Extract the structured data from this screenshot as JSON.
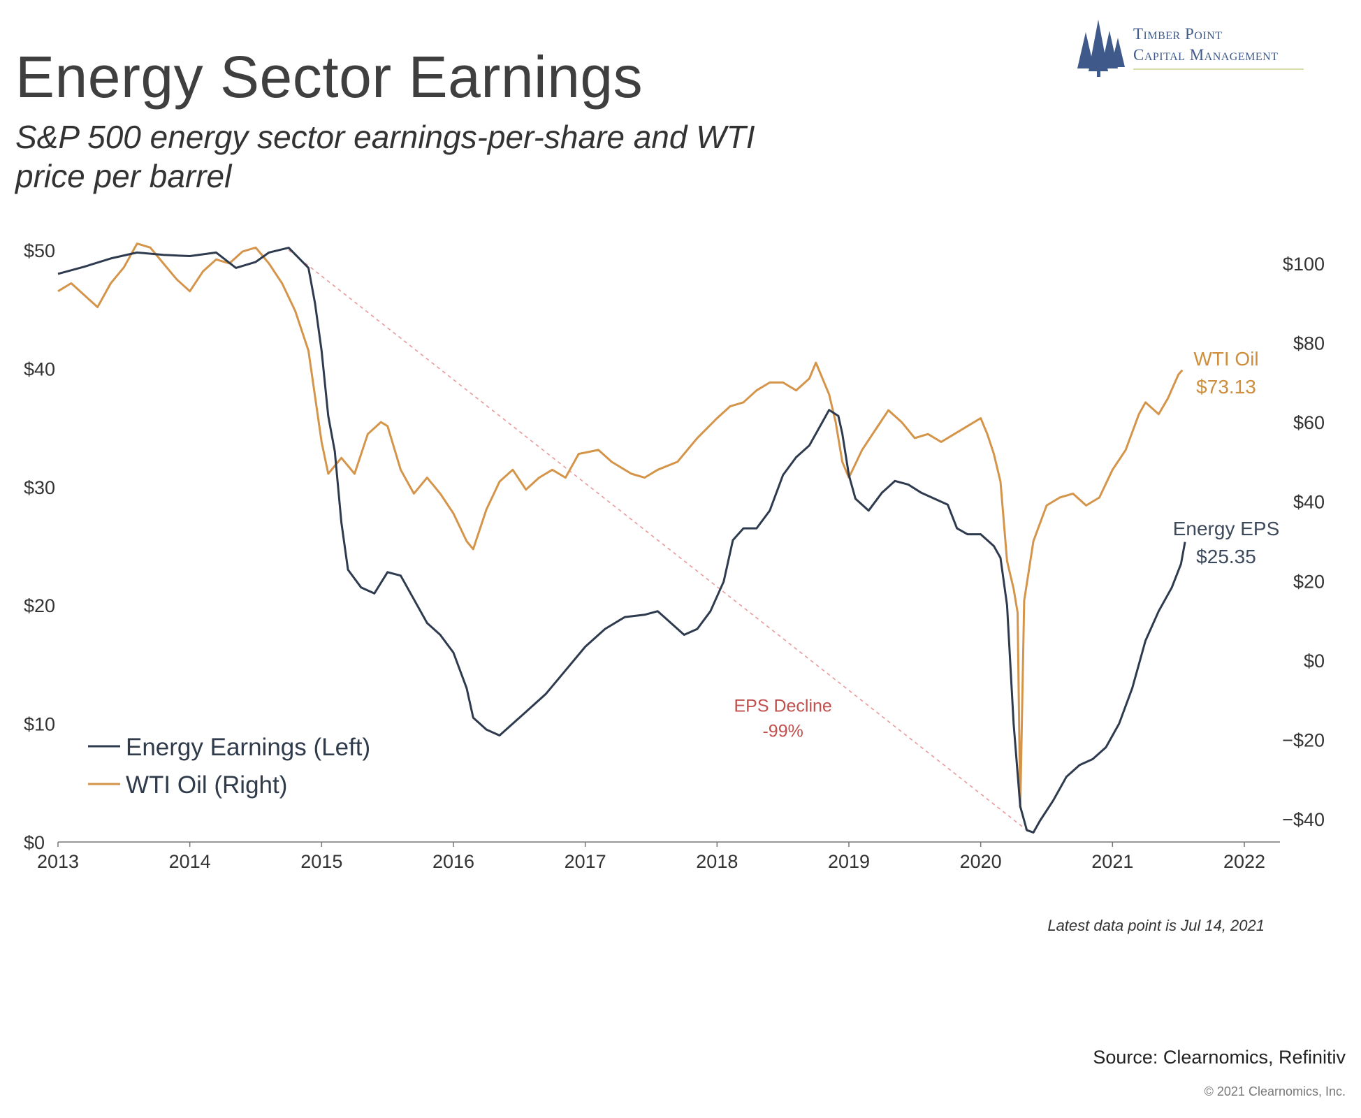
{
  "header": {
    "title": "Energy Sector Earnings",
    "subtitle": "S&P 500 energy sector earnings-per-share and WTI price per barrel"
  },
  "logo": {
    "line1": "Timber Point",
    "line2": "Capital Management",
    "icon": "pine-trees-icon",
    "color": "#3f5a8a"
  },
  "footer": {
    "latest_note": "Latest data point is Jul 14, 2021",
    "source": "Source: Clearnomics, Refinitiv",
    "copyright": "© 2021 Clearnomics, Inc."
  },
  "chart_data": {
    "type": "line",
    "xlim": [
      2013,
      2022
    ],
    "x_ticks": [
      "2013",
      "2014",
      "2015",
      "2016",
      "2017",
      "2018",
      "2019",
      "2020",
      "2021",
      "2022"
    ],
    "left_axis": {
      "ylim": [
        0,
        50
      ],
      "ticks": [
        {
          "value": 0,
          "label": "$0"
        },
        {
          "value": 10,
          "label": "$10"
        },
        {
          "value": 20,
          "label": "$20"
        },
        {
          "value": 30,
          "label": "$30"
        },
        {
          "value": 40,
          "label": "$40"
        },
        {
          "value": 50,
          "label": "$50"
        }
      ]
    },
    "right_axis": {
      "ylim": [
        -40,
        100
      ],
      "ticks": [
        {
          "value": -40,
          "label": "−$40"
        },
        {
          "value": -20,
          "label": "−$20"
        },
        {
          "value": 0,
          "label": "$0"
        },
        {
          "value": 20,
          "label": "$20"
        },
        {
          "value": 40,
          "label": "$40"
        },
        {
          "value": 60,
          "label": "$60"
        },
        {
          "value": 80,
          "label": "$80"
        },
        {
          "value": 100,
          "label": "$100"
        }
      ]
    },
    "legend": {
      "placement": "bottom-left",
      "items": [
        {
          "label": "Energy Earnings (Left)",
          "color": "#2e3b4e"
        },
        {
          "label": "WTI Oil (Right)",
          "color": "#d4954a"
        }
      ]
    },
    "series": [
      {
        "name": "Energy Earnings (Left)",
        "axis": "left",
        "color": "#2e3b4e",
        "end_label": "Energy EPS",
        "end_value_label": "$25.35",
        "points": [
          [
            2013.0,
            48.0
          ],
          [
            2013.2,
            48.6
          ],
          [
            2013.4,
            49.3
          ],
          [
            2013.6,
            49.8
          ],
          [
            2013.8,
            49.6
          ],
          [
            2014.0,
            49.5
          ],
          [
            2014.2,
            49.8
          ],
          [
            2014.35,
            48.5
          ],
          [
            2014.5,
            49.0
          ],
          [
            2014.6,
            49.8
          ],
          [
            2014.75,
            50.2
          ],
          [
            2014.9,
            48.5
          ],
          [
            2014.95,
            45.5
          ],
          [
            2015.0,
            41.5
          ],
          [
            2015.05,
            36.0
          ],
          [
            2015.1,
            33.0
          ],
          [
            2015.15,
            27.0
          ],
          [
            2015.2,
            23.0
          ],
          [
            2015.3,
            21.5
          ],
          [
            2015.4,
            21.0
          ],
          [
            2015.5,
            22.8
          ],
          [
            2015.6,
            22.5
          ],
          [
            2015.7,
            20.5
          ],
          [
            2015.8,
            18.5
          ],
          [
            2015.9,
            17.5
          ],
          [
            2016.0,
            16.0
          ],
          [
            2016.1,
            13.0
          ],
          [
            2016.15,
            10.5
          ],
          [
            2016.25,
            9.5
          ],
          [
            2016.35,
            9.0
          ],
          [
            2016.45,
            10.0
          ],
          [
            2016.55,
            11.0
          ],
          [
            2016.7,
            12.5
          ],
          [
            2016.85,
            14.5
          ],
          [
            2017.0,
            16.5
          ],
          [
            2017.15,
            18.0
          ],
          [
            2017.3,
            19.0
          ],
          [
            2017.45,
            19.2
          ],
          [
            2017.55,
            19.5
          ],
          [
            2017.65,
            18.5
          ],
          [
            2017.75,
            17.5
          ],
          [
            2017.85,
            18.0
          ],
          [
            2017.95,
            19.5
          ],
          [
            2018.05,
            22.0
          ],
          [
            2018.12,
            25.5
          ],
          [
            2018.2,
            26.5
          ],
          [
            2018.3,
            26.5
          ],
          [
            2018.4,
            28.0
          ],
          [
            2018.5,
            31.0
          ],
          [
            2018.6,
            32.5
          ],
          [
            2018.7,
            33.5
          ],
          [
            2018.8,
            35.5
          ],
          [
            2018.85,
            36.5
          ],
          [
            2018.92,
            36.0
          ],
          [
            2018.95,
            34.5
          ],
          [
            2019.0,
            31.0
          ],
          [
            2019.05,
            29.0
          ],
          [
            2019.15,
            28.0
          ],
          [
            2019.25,
            29.5
          ],
          [
            2019.35,
            30.5
          ],
          [
            2019.45,
            30.2
          ],
          [
            2019.55,
            29.5
          ],
          [
            2019.65,
            29.0
          ],
          [
            2019.75,
            28.5
          ],
          [
            2019.82,
            26.5
          ],
          [
            2019.9,
            26.0
          ],
          [
            2020.0,
            26.0
          ],
          [
            2020.1,
            25.0
          ],
          [
            2020.15,
            24.0
          ],
          [
            2020.2,
            20.0
          ],
          [
            2020.25,
            10.0
          ],
          [
            2020.3,
            3.0
          ],
          [
            2020.35,
            1.0
          ],
          [
            2020.4,
            0.8
          ],
          [
            2020.45,
            1.8
          ],
          [
            2020.55,
            3.5
          ],
          [
            2020.65,
            5.5
          ],
          [
            2020.75,
            6.5
          ],
          [
            2020.85,
            7.0
          ],
          [
            2020.95,
            8.0
          ],
          [
            2021.05,
            10.0
          ],
          [
            2021.15,
            13.0
          ],
          [
            2021.25,
            17.0
          ],
          [
            2021.35,
            19.5
          ],
          [
            2021.45,
            21.5
          ],
          [
            2021.52,
            23.5
          ],
          [
            2021.55,
            25.35
          ]
        ]
      },
      {
        "name": "WTI Oil (Right)",
        "axis": "right",
        "color": "#d4954a",
        "end_label": "WTI Oil",
        "end_value_label": "$73.13",
        "points": [
          [
            2013.0,
            93.0
          ],
          [
            2013.1,
            95.0
          ],
          [
            2013.2,
            92.0
          ],
          [
            2013.3,
            89.0
          ],
          [
            2013.4,
            95.0
          ],
          [
            2013.5,
            99.0
          ],
          [
            2013.6,
            105.0
          ],
          [
            2013.7,
            104.0
          ],
          [
            2013.8,
            100.0
          ],
          [
            2013.9,
            96.0
          ],
          [
            2014.0,
            93.0
          ],
          [
            2014.1,
            98.0
          ],
          [
            2014.2,
            101.0
          ],
          [
            2014.3,
            100.0
          ],
          [
            2014.4,
            103.0
          ],
          [
            2014.5,
            104.0
          ],
          [
            2014.6,
            100.0
          ],
          [
            2014.7,
            95.0
          ],
          [
            2014.8,
            88.0
          ],
          [
            2014.9,
            78.0
          ],
          [
            2015.0,
            55.0
          ],
          [
            2015.05,
            47.0
          ],
          [
            2015.15,
            51.0
          ],
          [
            2015.25,
            47.0
          ],
          [
            2015.35,
            57.0
          ],
          [
            2015.45,
            60.0
          ],
          [
            2015.5,
            59.0
          ],
          [
            2015.6,
            48.0
          ],
          [
            2015.7,
            42.0
          ],
          [
            2015.8,
            46.0
          ],
          [
            2015.9,
            42.0
          ],
          [
            2016.0,
            37.0
          ],
          [
            2016.1,
            30.0
          ],
          [
            2016.15,
            28.0
          ],
          [
            2016.25,
            38.0
          ],
          [
            2016.35,
            45.0
          ],
          [
            2016.45,
            48.0
          ],
          [
            2016.55,
            43.0
          ],
          [
            2016.65,
            46.0
          ],
          [
            2016.75,
            48.0
          ],
          [
            2016.85,
            46.0
          ],
          [
            2016.95,
            52.0
          ],
          [
            2017.1,
            53.0
          ],
          [
            2017.2,
            50.0
          ],
          [
            2017.35,
            47.0
          ],
          [
            2017.45,
            46.0
          ],
          [
            2017.55,
            48.0
          ],
          [
            2017.7,
            50.0
          ],
          [
            2017.85,
            56.0
          ],
          [
            2018.0,
            61.0
          ],
          [
            2018.1,
            64.0
          ],
          [
            2018.2,
            65.0
          ],
          [
            2018.3,
            68.0
          ],
          [
            2018.4,
            70.0
          ],
          [
            2018.5,
            70.0
          ],
          [
            2018.6,
            68.0
          ],
          [
            2018.7,
            71.0
          ],
          [
            2018.75,
            75.0
          ],
          [
            2018.85,
            67.0
          ],
          [
            2018.9,
            60.0
          ],
          [
            2018.95,
            50.0
          ],
          [
            2019.0,
            46.0
          ],
          [
            2019.1,
            53.0
          ],
          [
            2019.2,
            58.0
          ],
          [
            2019.3,
            63.0
          ],
          [
            2019.4,
            60.0
          ],
          [
            2019.5,
            56.0
          ],
          [
            2019.6,
            57.0
          ],
          [
            2019.7,
            55.0
          ],
          [
            2019.8,
            57.0
          ],
          [
            2019.9,
            59.0
          ],
          [
            2020.0,
            61.0
          ],
          [
            2020.05,
            57.0
          ],
          [
            2020.1,
            52.0
          ],
          [
            2020.15,
            45.0
          ],
          [
            2020.2,
            25.0
          ],
          [
            2020.25,
            18.0
          ],
          [
            2020.28,
            12.0
          ],
          [
            2020.3,
            -37.0
          ],
          [
            2020.33,
            15.0
          ],
          [
            2020.4,
            30.0
          ],
          [
            2020.5,
            39.0
          ],
          [
            2020.6,
            41.0
          ],
          [
            2020.7,
            42.0
          ],
          [
            2020.8,
            39.0
          ],
          [
            2020.9,
            41.0
          ],
          [
            2021.0,
            48.0
          ],
          [
            2021.1,
            53.0
          ],
          [
            2021.2,
            62.0
          ],
          [
            2021.25,
            65.0
          ],
          [
            2021.35,
            62.0
          ],
          [
            2021.42,
            66.0
          ],
          [
            2021.5,
            72.0
          ],
          [
            2021.53,
            73.13
          ]
        ]
      }
    ],
    "trend_line": {
      "from": [
        2014.75,
        50.0
      ],
      "to": [
        2020.35,
        1.0
      ],
      "color": "#e89a9a",
      "style": "dashed"
    },
    "annotation": {
      "line1": "EPS Decline",
      "line2": "-99%",
      "x": 2018.5,
      "y": 11.0,
      "color": "#c0504d"
    }
  }
}
